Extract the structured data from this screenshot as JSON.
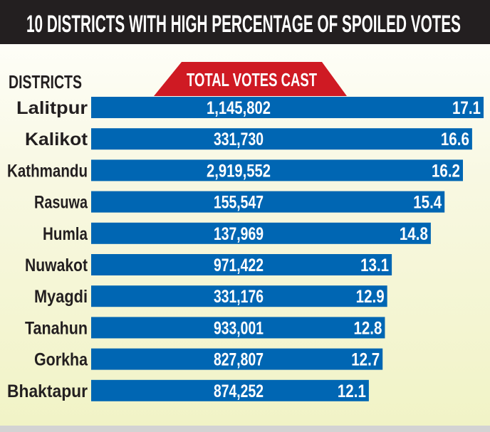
{
  "chart_data": {
    "type": "bar",
    "orientation": "horizontal",
    "title": "10 DISTRICTS WITH HIGH PERCENTAGE OF SPOILED VOTES",
    "category_header": "DISTRICTS",
    "secondary_header": "TOTAL VOTES CAST",
    "categories": [
      "Lalitpur",
      "Kalikot",
      "Kathmandu",
      "Rasuwa",
      "Humla",
      "Nuwakot",
      "Myagdi",
      "Tanahun",
      "Gorkha",
      "Bhaktapur"
    ],
    "values": [
      17.1,
      16.6,
      16.2,
      15.4,
      14.8,
      13.1,
      12.9,
      12.8,
      12.7,
      12.1
    ],
    "value_labels": [
      "17.1",
      "16.6",
      "16.2",
      "15.4",
      "14.8",
      "13.1",
      "12.9",
      "12.8",
      "12.7",
      "12.1"
    ],
    "total_votes_cast": [
      "1,145,802",
      "331,730",
      "2,919,552",
      "155,547",
      "137,969",
      "971,422",
      "331,176",
      "933,001",
      "827,807",
      "874,252"
    ],
    "xlim": [
      0,
      17.1
    ],
    "grid": false,
    "colors": {
      "bar": "#0066b3",
      "header_bg": "#231f20",
      "tag": "#cf1a23"
    }
  }
}
